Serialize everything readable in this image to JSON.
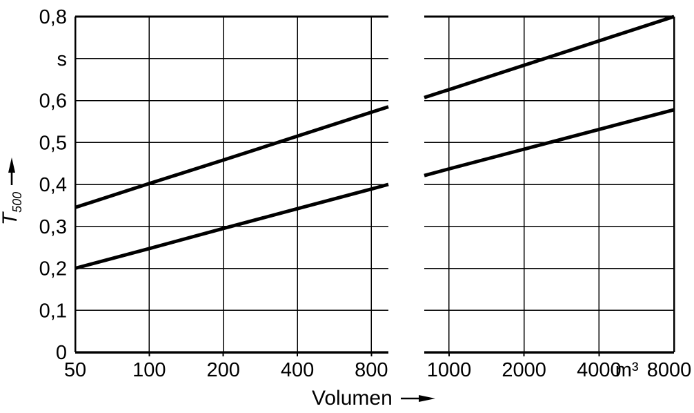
{
  "figure": {
    "background": "#ffffff",
    "ink": "#000000"
  },
  "chart_data": {
    "type": "line",
    "title": "",
    "grid": true,
    "legend": false,
    "x_axis": {
      "label": "Volumen",
      "unit": "m³",
      "scale": "log",
      "broken_axis": true,
      "panels": [
        {
          "range": [
            50,
            938
          ],
          "ticks": [
            {
              "v": 50,
              "label": "50",
              "at_edge": true
            },
            {
              "v": 100,
              "label": "100"
            },
            {
              "v": 200,
              "label": "200"
            },
            {
              "v": 400,
              "label": "400"
            },
            {
              "v": 800,
              "label": "800"
            }
          ]
        },
        {
          "range": [
            795,
            8000
          ],
          "ticks": [
            {
              "v": 1000,
              "label": "1000"
            },
            {
              "v": 2000,
              "label": "2000"
            },
            {
              "v": 4000,
              "label": "4000"
            },
            {
              "v": 8000,
              "label": "8000",
              "at_edge": true
            }
          ]
        }
      ]
    },
    "y_axis": {
      "label_main": "T",
      "label_sub": "500",
      "unit": "s",
      "range": [
        0,
        0.8
      ],
      "ticks": [
        {
          "v": 0,
          "label": "0"
        },
        {
          "v": 0.1,
          "label": "0,1"
        },
        {
          "v": 0.2,
          "label": "0,2"
        },
        {
          "v": 0.3,
          "label": "0,3"
        },
        {
          "v": 0.4,
          "label": "0,4"
        },
        {
          "v": 0.5,
          "label": "0,5"
        },
        {
          "v": 0.6,
          "label": "0,6"
        },
        {
          "v": 0.7,
          "label": "s"
        },
        {
          "v": 0.8,
          "label": "0,8"
        }
      ]
    },
    "series": [
      {
        "name": "upper-line-left-panel",
        "panel": 0,
        "points": [
          [
            50,
            0.345
          ],
          [
            100,
            0.402
          ],
          [
            200,
            0.458
          ],
          [
            400,
            0.515
          ],
          [
            800,
            0.572
          ],
          [
            938,
            0.585
          ]
        ]
      },
      {
        "name": "lower-line-left-panel",
        "panel": 0,
        "points": [
          [
            50,
            0.2
          ],
          [
            100,
            0.247
          ],
          [
            200,
            0.295
          ],
          [
            400,
            0.342
          ],
          [
            800,
            0.389
          ],
          [
            938,
            0.4
          ]
        ]
      },
      {
        "name": "upper-line-right-panel",
        "panel": 1,
        "points": [
          [
            795,
            0.607
          ],
          [
            1000,
            0.626
          ],
          [
            2000,
            0.684
          ],
          [
            4000,
            0.742
          ],
          [
            8000,
            0.8
          ]
        ]
      },
      {
        "name": "lower-line-right-panel",
        "panel": 1,
        "points": [
          [
            795,
            0.421
          ],
          [
            1000,
            0.437
          ],
          [
            2000,
            0.484
          ],
          [
            4000,
            0.531
          ],
          [
            8000,
            0.578
          ]
        ]
      }
    ]
  }
}
